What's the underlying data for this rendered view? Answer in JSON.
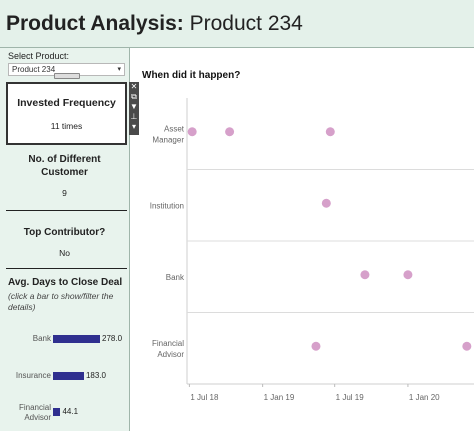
{
  "header": {
    "title_bold": "Product Analysis:",
    "title_product": "Product 234"
  },
  "sidebar": {
    "select_label": "Select Product:",
    "select_value": "Product 234",
    "invested": {
      "title": "Invested Frequency",
      "value": "11 times"
    },
    "customers": {
      "title_line1": "No. of Different",
      "title_line2": "Customer",
      "value": "9"
    },
    "contributor": {
      "title": "Top Contributor?",
      "value": "No"
    },
    "avg_days": {
      "title": "Avg. Days to Close Deal",
      "subtitle": "(click a bar to show/filter the details)",
      "bars": [
        {
          "label": "Bank",
          "value": 278.0,
          "value_text": "278.0"
        },
        {
          "label": "Insurance",
          "value": 183.0,
          "value_text": "183.0"
        },
        {
          "label_line1": "Financial",
          "label_line2": "Advisor",
          "value": 44.1,
          "value_text": "44.1"
        }
      ]
    }
  },
  "toolbar_icons": [
    "close-icon",
    "popout-icon",
    "filter-icon",
    "pin-icon",
    "more-icon"
  ],
  "chart_title": "When did it happen?",
  "chart_data": {
    "type": "scatter",
    "title": "When did it happen?",
    "color": "#d6a0ca",
    "categories": [
      {
        "line1": "Asset",
        "line2": "Manager"
      },
      {
        "line1": "Institution",
        "line2": ""
      },
      {
        "line1": "Bank",
        "line2": ""
      },
      {
        "line1": "Financial",
        "line2": "Advisor"
      }
    ],
    "x_ticks": [
      "1 Jul 18",
      "1 Jan 19",
      "1 Jul 19",
      "1 Jan 20"
    ],
    "x_range": [
      "2018-06-25",
      "2020-06-15"
    ],
    "points": [
      {
        "category": 0,
        "date": "2018-07-08"
      },
      {
        "category": 0,
        "date": "2018-10-10"
      },
      {
        "category": 0,
        "date": "2019-06-20"
      },
      {
        "category": 1,
        "date": "2019-06-10"
      },
      {
        "category": 2,
        "date": "2019-09-15"
      },
      {
        "category": 2,
        "date": "2020-01-01"
      },
      {
        "category": 3,
        "date": "2019-05-15"
      },
      {
        "category": 3,
        "date": "2020-05-28"
      }
    ]
  }
}
